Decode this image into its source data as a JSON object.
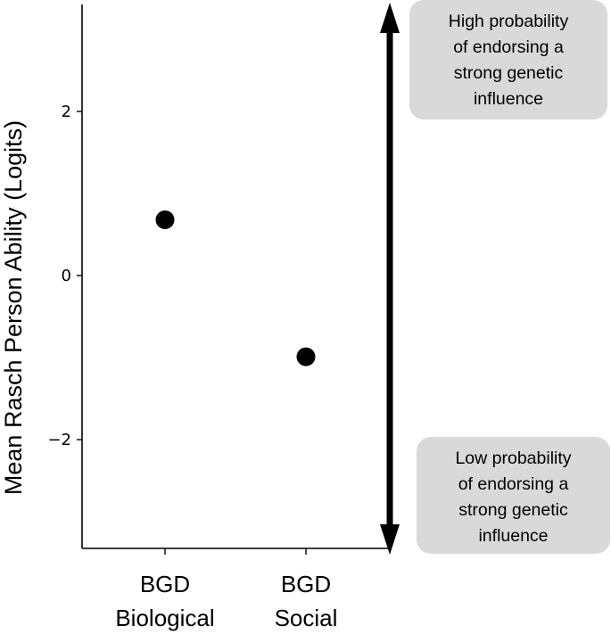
{
  "chart_data": {
    "type": "scatter",
    "title": "",
    "xlabel": "",
    "ylabel": "Mean Rasch Person Ability (Logits)",
    "ylim": [
      -3.3,
      3.3
    ],
    "yticks": [
      {
        "value": 2,
        "label": "2"
      },
      {
        "value": 0,
        "label": "0"
      },
      {
        "value": -2,
        "label": "−2"
      }
    ],
    "categories": [
      {
        "line1": "BGD",
        "line2": "Biological"
      },
      {
        "line1": "BGD",
        "line2": "Social"
      }
    ],
    "values": [
      0.68,
      -0.99
    ],
    "grid": false,
    "point_color": "#000000",
    "arrow_color": "#000000",
    "annotation_box_color": "#d9d9d9",
    "annotations": [
      {
        "position": "top-right",
        "lines": [
          "High probability",
          "of endorsing a",
          "strong genetic",
          "influence"
        ]
      },
      {
        "position": "bottom-right",
        "lines": [
          "Low probability",
          "of endorsing a",
          "strong genetic",
          "influence"
        ]
      }
    ]
  }
}
